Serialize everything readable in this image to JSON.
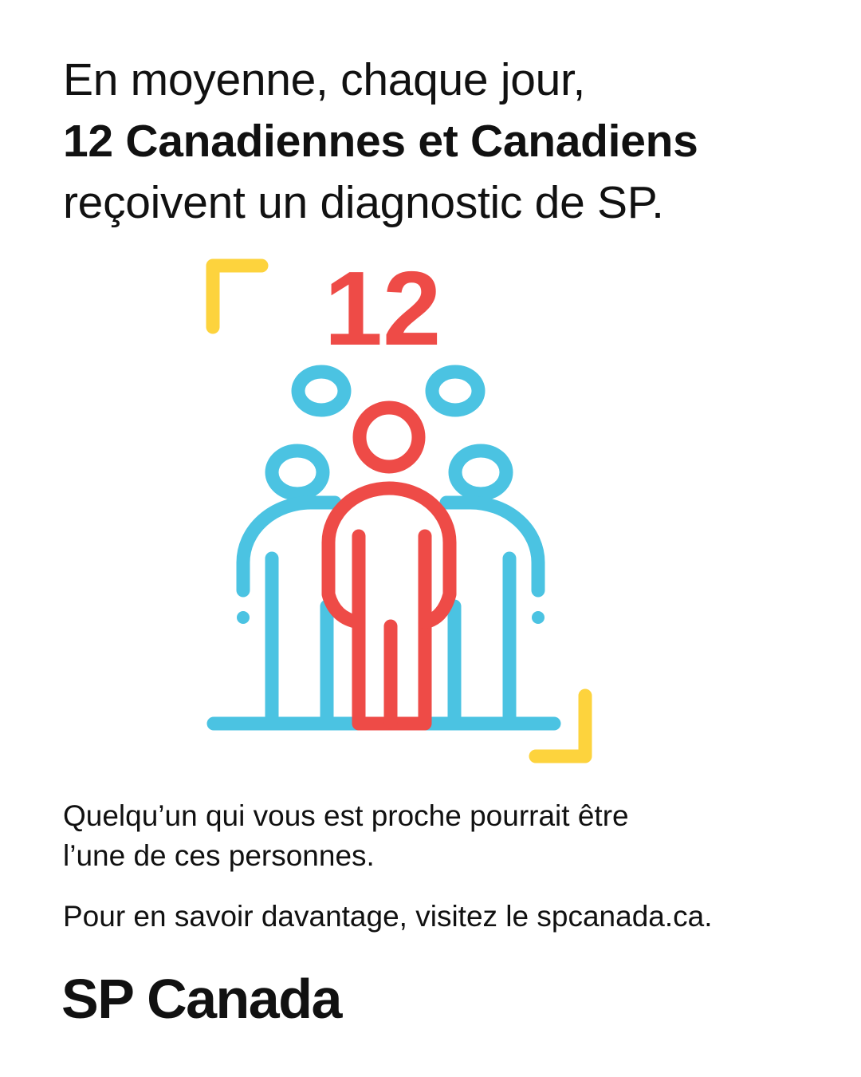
{
  "headline": {
    "line1": "En moyenne, chaque jour,",
    "line2": "12 Canadiennes et Canadiens",
    "line3": "reçoivent un diagnostic de SP."
  },
  "illustration": {
    "number": "12",
    "icon": "group-of-people-icon",
    "colors": {
      "accent_red": "#EE4B47",
      "people_blue": "#4BC3E2",
      "corner_yellow": "#FDD33D"
    }
  },
  "body": {
    "line1": "Quelqu’un qui vous est proche pourrait être",
    "line2": "l’une de ces personnes.",
    "cta": "Pour en savoir davantage, visitez le spcanada.ca."
  },
  "logo": {
    "text": "SP Canada"
  }
}
